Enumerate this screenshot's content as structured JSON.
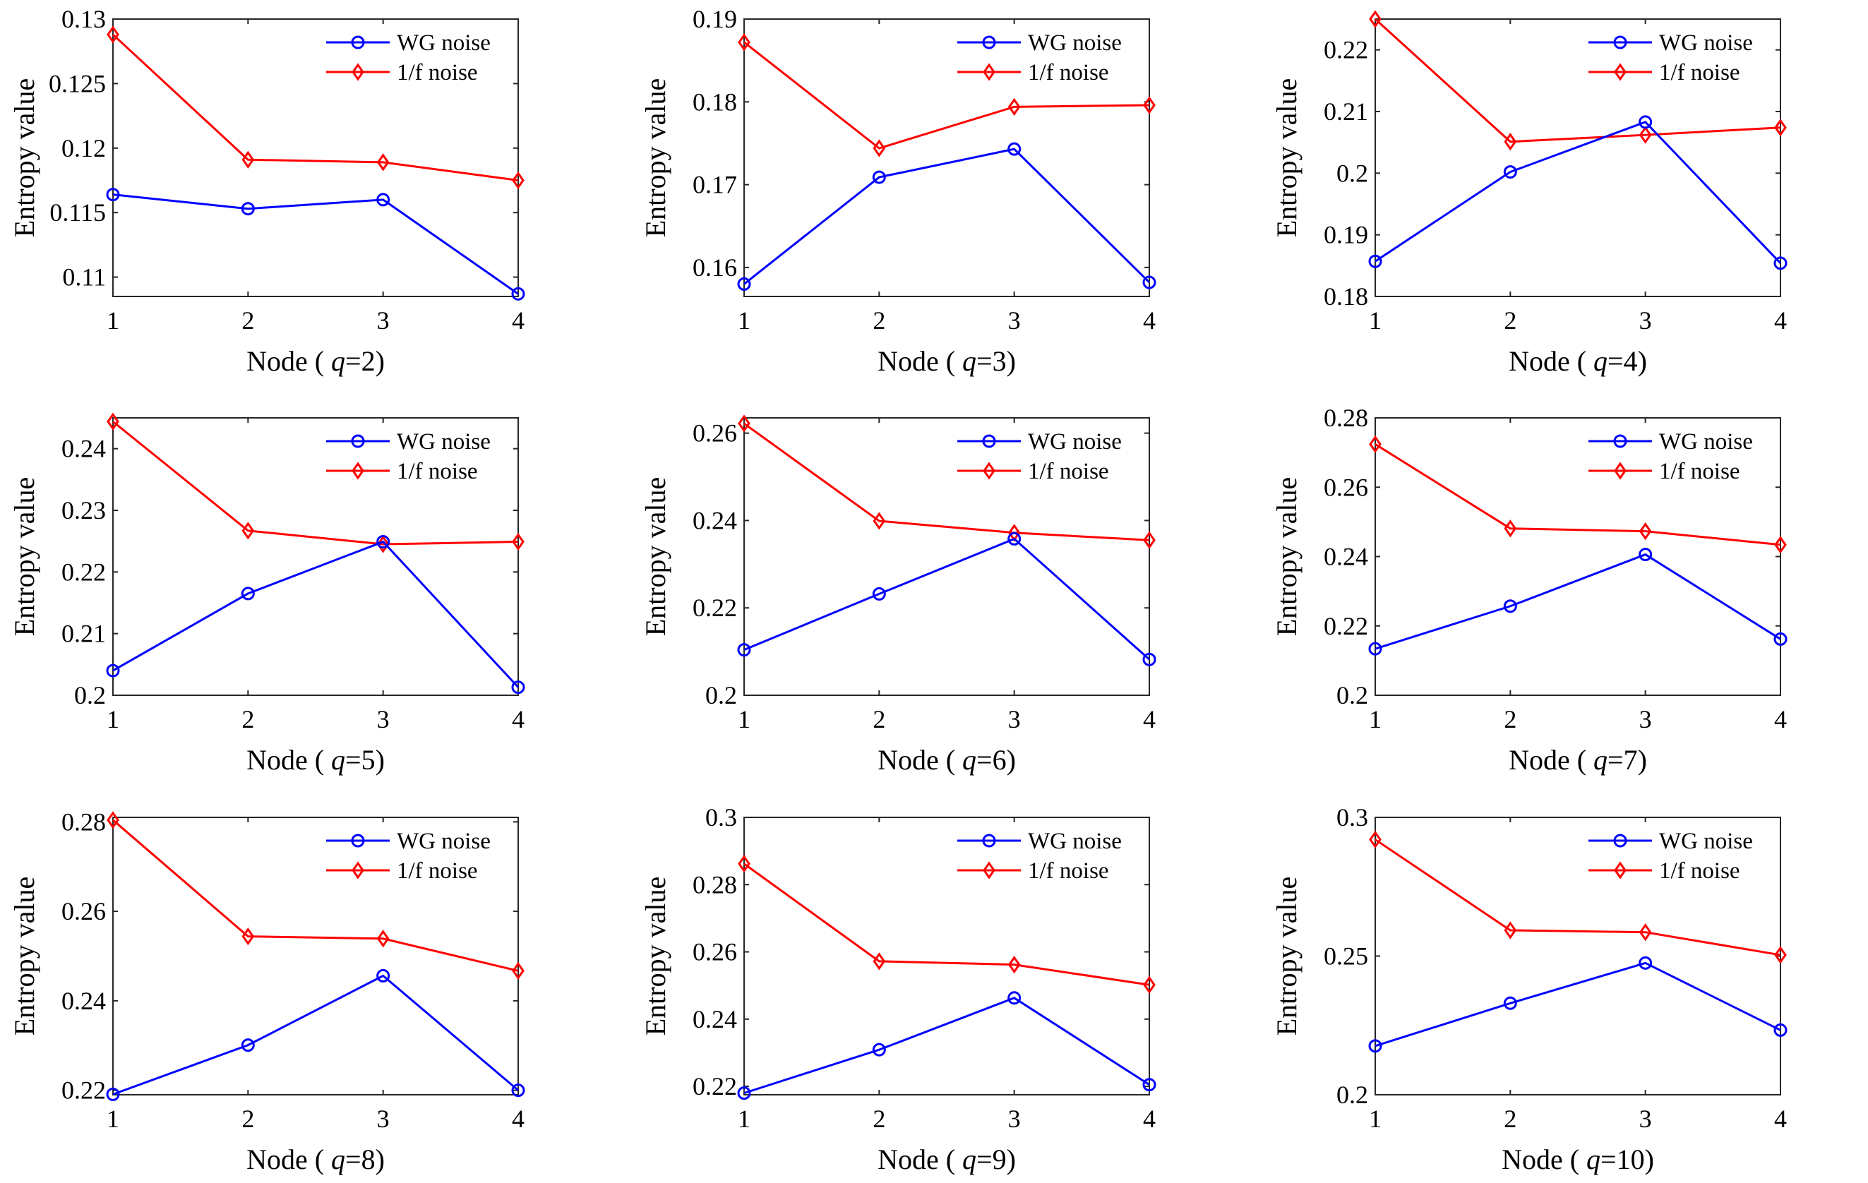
{
  "figure": {
    "legend_labels": [
      "WG noise",
      "1/f noise"
    ],
    "colors": {
      "wg": "#0000ff",
      "f": "#ff0000"
    }
  },
  "chart_data": [
    {
      "type": "line",
      "xlabel": "Node (q=2)",
      "xlabel_prefix": "Node ( ",
      "xlabel_var": "q",
      "xlabel_suffix": "=2)",
      "ylabel": "Entropy value",
      "categories": [
        1,
        2,
        3,
        4
      ],
      "xlim": [
        1,
        4
      ],
      "ylim": [
        0.1085,
        0.13
      ],
      "yticks": [
        0.11,
        0.115,
        0.12,
        0.125,
        0.13
      ],
      "ytick_labels": [
        "0.11",
        "0.115",
        "0.12",
        "0.125",
        "0.13"
      ],
      "legend": "top-right",
      "series": [
        {
          "name": "WG noise",
          "marker": "circle",
          "color": "#0000ff",
          "values": [
            0.1164,
            0.1153,
            0.116,
            0.1087
          ]
        },
        {
          "name": "1/f noise",
          "marker": "diamond",
          "color": "#ff0000",
          "values": [
            0.1288,
            0.1191,
            0.1189,
            0.1175
          ]
        }
      ]
    },
    {
      "type": "line",
      "xlabel": "Node (q=3)",
      "xlabel_prefix": "Node ( ",
      "xlabel_var": "q",
      "xlabel_suffix": "=3)",
      "ylabel": "Entropy value",
      "categories": [
        1,
        2,
        3,
        4
      ],
      "xlim": [
        1,
        4
      ],
      "ylim": [
        0.1565,
        0.19
      ],
      "yticks": [
        0.16,
        0.17,
        0.18,
        0.19
      ],
      "ytick_labels": [
        "0.16",
        "0.17",
        "0.18",
        "0.19"
      ],
      "legend": "top-right",
      "series": [
        {
          "name": "WG noise",
          "marker": "circle",
          "color": "#0000ff",
          "values": [
            0.158,
            0.1709,
            0.1743,
            0.1582
          ]
        },
        {
          "name": "1/f noise",
          "marker": "diamond",
          "color": "#ff0000",
          "values": [
            0.1872,
            0.1744,
            0.1794,
            0.1796
          ]
        }
      ]
    },
    {
      "type": "line",
      "xlabel": "Node (q=4)",
      "xlabel_prefix": "Node ( ",
      "xlabel_var": "q",
      "xlabel_suffix": "=4)",
      "ylabel": "Entropy value",
      "categories": [
        1,
        2,
        3,
        4
      ],
      "xlim": [
        1,
        4
      ],
      "ylim": [
        0.18,
        0.225
      ],
      "yticks": [
        0.18,
        0.19,
        0.2,
        0.21,
        0.22
      ],
      "ytick_labels": [
        "0.18",
        "0.19",
        "0.2",
        "0.21",
        "0.22"
      ],
      "legend": "top-right",
      "series": [
        {
          "name": "WG noise",
          "marker": "circle",
          "color": "#0000ff",
          "values": [
            0.1857,
            0.2002,
            0.2083,
            0.1854
          ]
        },
        {
          "name": "1/f noise",
          "marker": "diamond",
          "color": "#ff0000",
          "values": [
            0.225,
            0.2051,
            0.2062,
            0.2074
          ]
        }
      ]
    },
    {
      "type": "line",
      "xlabel": "Node (q=5)",
      "xlabel_prefix": "Node ( ",
      "xlabel_var": "q",
      "xlabel_suffix": "=5)",
      "ylabel": "Entropy value",
      "categories": [
        1,
        2,
        3,
        4
      ],
      "xlim": [
        1,
        4
      ],
      "ylim": [
        0.2,
        0.245
      ],
      "yticks": [
        0.2,
        0.21,
        0.22,
        0.23,
        0.24
      ],
      "ytick_labels": [
        "0.2",
        "0.21",
        "0.22",
        "0.23",
        "0.24"
      ],
      "legend": "top-right",
      "series": [
        {
          "name": "WG noise",
          "marker": "circle",
          "color": "#0000ff",
          "values": [
            0.204,
            0.2165,
            0.2249,
            0.2013
          ]
        },
        {
          "name": "1/f noise",
          "marker": "diamond",
          "color": "#ff0000",
          "values": [
            0.2444,
            0.2267,
            0.2245,
            0.2249
          ]
        }
      ]
    },
    {
      "type": "line",
      "xlabel": "Node (q=6)",
      "xlabel_prefix": "Node ( ",
      "xlabel_var": "q",
      "xlabel_suffix": "=6)",
      "ylabel": "Entropy value",
      "categories": [
        1,
        2,
        3,
        4
      ],
      "xlim": [
        1,
        4
      ],
      "ylim": [
        0.2,
        0.2635
      ],
      "yticks": [
        0.2,
        0.22,
        0.24,
        0.26
      ],
      "ytick_labels": [
        "0.2",
        "0.22",
        "0.24",
        "0.26"
      ],
      "legend": "top-right",
      "series": [
        {
          "name": "WG noise",
          "marker": "circle",
          "color": "#0000ff",
          "values": [
            0.2104,
            0.2232,
            0.2358,
            0.2082
          ]
        },
        {
          "name": "1/f noise",
          "marker": "diamond",
          "color": "#ff0000",
          "values": [
            0.2622,
            0.2399,
            0.2372,
            0.2355
          ]
        }
      ]
    },
    {
      "type": "line",
      "xlabel": "Node (q=7)",
      "xlabel_prefix": "Node ( ",
      "xlabel_var": "q",
      "xlabel_suffix": "=7)",
      "ylabel": "Entropy value",
      "categories": [
        1,
        2,
        3,
        4
      ],
      "xlim": [
        1,
        4
      ],
      "ylim": [
        0.2,
        0.28
      ],
      "yticks": [
        0.2,
        0.22,
        0.24,
        0.26,
        0.28
      ],
      "ytick_labels": [
        "0.2",
        "0.22",
        "0.24",
        "0.26",
        "0.28"
      ],
      "legend": "top-right",
      "series": [
        {
          "name": "WG noise",
          "marker": "circle",
          "color": "#0000ff",
          "values": [
            0.2134,
            0.2257,
            0.2406,
            0.2162
          ]
        },
        {
          "name": "1/f noise",
          "marker": "diamond",
          "color": "#ff0000",
          "values": [
            0.2724,
            0.2481,
            0.2473,
            0.2434
          ]
        }
      ]
    },
    {
      "type": "line",
      "xlabel": "Node (q=8)",
      "xlabel_prefix": "Node ( ",
      "xlabel_var": "q",
      "xlabel_suffix": "=8)",
      "ylabel": "Entropy value",
      "categories": [
        1,
        2,
        3,
        4
      ],
      "xlim": [
        1,
        4
      ],
      "ylim": [
        0.219,
        0.281
      ],
      "yticks": [
        0.22,
        0.24,
        0.26,
        0.28
      ],
      "ytick_labels": [
        "0.22",
        "0.24",
        "0.26",
        "0.28"
      ],
      "legend": "top-right",
      "series": [
        {
          "name": "WG noise",
          "marker": "circle",
          "color": "#0000ff",
          "values": [
            0.2191,
            0.2301,
            0.2456,
            0.22
          ]
        },
        {
          "name": "1/f noise",
          "marker": "diamond",
          "color": "#ff0000",
          "values": [
            0.2804,
            0.2544,
            0.2539,
            0.2467
          ]
        }
      ]
    },
    {
      "type": "line",
      "xlabel": "Node (q=9)",
      "xlabel_prefix": "Node ( ",
      "xlabel_var": "q",
      "xlabel_suffix": "=9)",
      "ylabel": "Entropy value",
      "categories": [
        1,
        2,
        3,
        4
      ],
      "xlim": [
        1,
        4
      ],
      "ylim": [
        0.2175,
        0.3
      ],
      "yticks": [
        0.22,
        0.24,
        0.26,
        0.28,
        0.3
      ],
      "ytick_labels": [
        "0.22",
        "0.24",
        "0.26",
        "0.28",
        "0.3"
      ],
      "legend": "top-right",
      "series": [
        {
          "name": "WG noise",
          "marker": "circle",
          "color": "#0000ff",
          "values": [
            0.218,
            0.2309,
            0.2463,
            0.2205
          ]
        },
        {
          "name": "1/f noise",
          "marker": "diamond",
          "color": "#ff0000",
          "values": [
            0.2862,
            0.2572,
            0.2562,
            0.2502
          ]
        }
      ]
    },
    {
      "type": "line",
      "xlabel": "Node (q=10)",
      "xlabel_prefix": "Node ( ",
      "xlabel_var": "q",
      "xlabel_suffix": "=10)",
      "ylabel": "Entropy value",
      "categories": [
        1,
        2,
        3,
        4
      ],
      "xlim": [
        1,
        4
      ],
      "ylim": [
        0.2,
        0.3
      ],
      "yticks": [
        0.2,
        0.25,
        0.3
      ],
      "ytick_labels": [
        "0.2",
        "0.25",
        "0.3"
      ],
      "legend": "top-right",
      "series": [
        {
          "name": "WG noise",
          "marker": "circle",
          "color": "#0000ff",
          "values": [
            0.2176,
            0.233,
            0.2475,
            0.2233
          ]
        },
        {
          "name": "1/f noise",
          "marker": "diamond",
          "color": "#ff0000",
          "values": [
            0.292,
            0.2593,
            0.2586,
            0.2504
          ]
        }
      ]
    }
  ]
}
